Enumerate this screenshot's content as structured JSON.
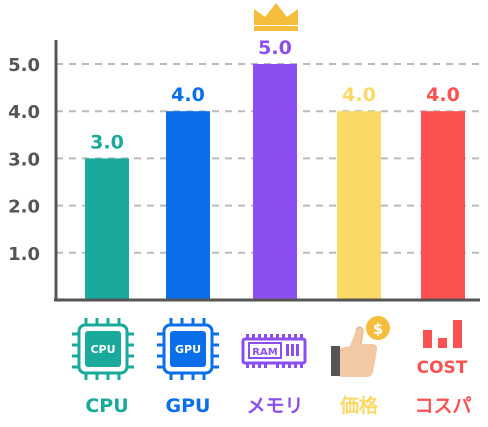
{
  "chart_data": {
    "type": "bar",
    "categories": [
      "CPU",
      "GPU",
      "メモリ",
      "価格",
      "コスパ"
    ],
    "values": [
      3.0,
      4.0,
      5.0,
      4.0,
      4.0
    ],
    "value_labels": [
      "3.0",
      "4.0",
      "5.0",
      "4.0",
      "4.0"
    ],
    "colors": [
      "#1aaa9b",
      "#0a6fe8",
      "#8b4ff0",
      "#fbd967",
      "#fb5150"
    ],
    "yticks": [
      "1.0",
      "2.0",
      "3.0",
      "4.0",
      "5.0"
    ],
    "ylim": [
      0,
      5.5
    ],
    "grid": true,
    "highlight": {
      "category": "メモリ",
      "icon": "crown-icon",
      "color": "#f6bd3c"
    },
    "icons": [
      {
        "name": "cpu-chip-icon",
        "text": "CPU"
      },
      {
        "name": "gpu-chip-icon",
        "text": "GPU"
      },
      {
        "name": "ram-stick-icon",
        "text": "RAM"
      },
      {
        "name": "price-thumbs-up-icon",
        "text": "$"
      },
      {
        "name": "cost-chart-icon",
        "text": "COST"
      }
    ]
  }
}
